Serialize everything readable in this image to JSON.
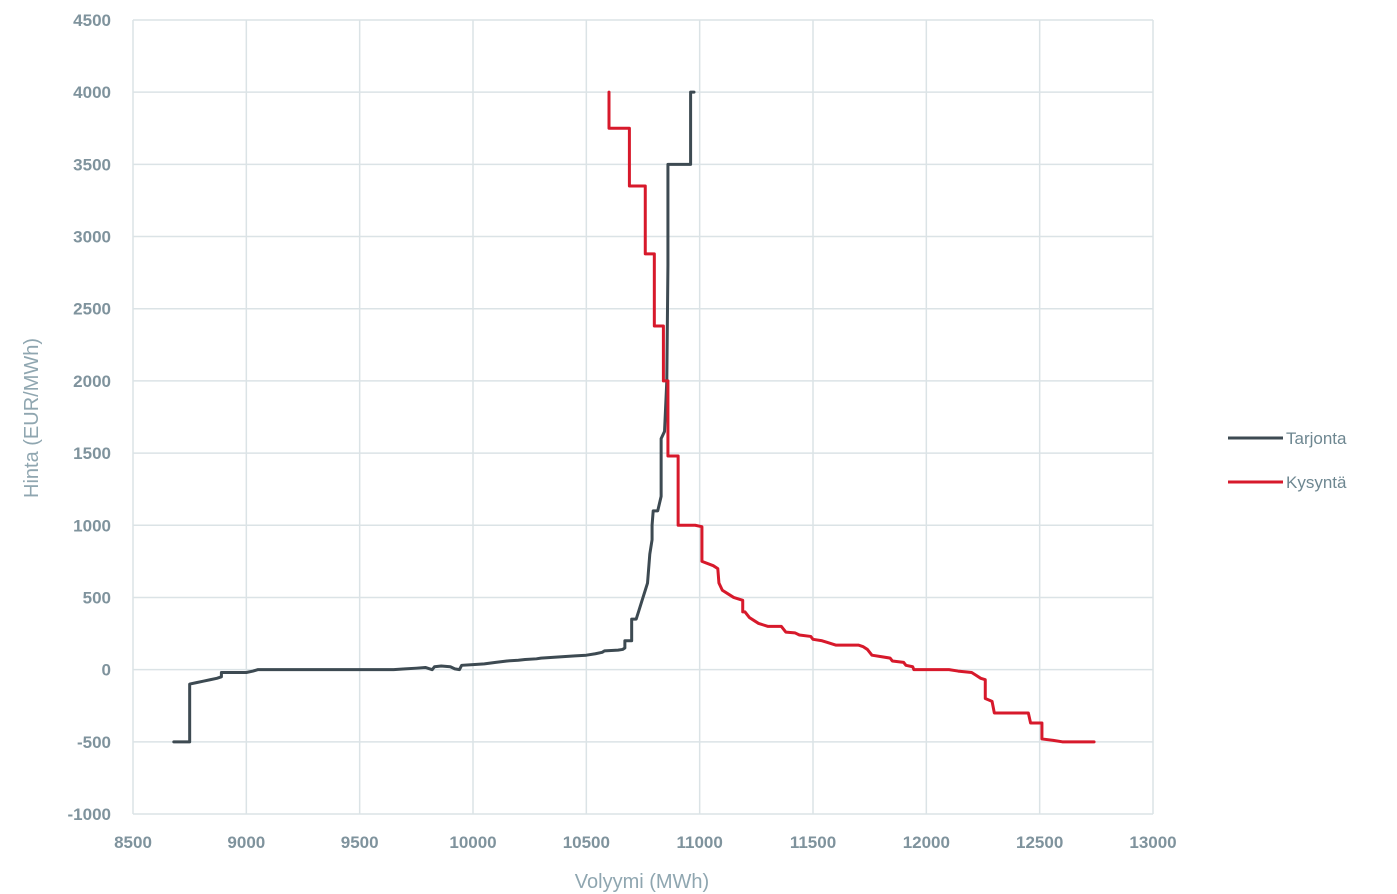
{
  "chart_data": {
    "type": "line",
    "title": "",
    "xlabel": "Volyymi (MWh)",
    "ylabel": "Hinta (EUR/MWh)",
    "xlim": [
      8500,
      13000
    ],
    "ylim": [
      -1000,
      4500
    ],
    "xticks": [
      8500,
      9000,
      9500,
      10000,
      10500,
      11000,
      11500,
      12000,
      12500,
      13000
    ],
    "yticks": [
      -1000,
      -500,
      0,
      500,
      1000,
      1500,
      2000,
      2500,
      3000,
      3500,
      4000,
      4500
    ],
    "grid": true,
    "legend_position": "right",
    "series": [
      {
        "name": "Tarjonta",
        "color": "#3d4a52",
        "points": [
          [
            8680,
            -500
          ],
          [
            8750,
            -500
          ],
          [
            8750,
            -100
          ],
          [
            8780,
            -90
          ],
          [
            8810,
            -80
          ],
          [
            8840,
            -70
          ],
          [
            8870,
            -60
          ],
          [
            8890,
            -50
          ],
          [
            8890,
            -20
          ],
          [
            8950,
            -20
          ],
          [
            9000,
            -20
          ],
          [
            9030,
            -10
          ],
          [
            9050,
            0
          ],
          [
            9250,
            0
          ],
          [
            9500,
            0
          ],
          [
            9650,
            0
          ],
          [
            9700,
            5
          ],
          [
            9750,
            10
          ],
          [
            9790,
            15
          ],
          [
            9810,
            5
          ],
          [
            9820,
            0
          ],
          [
            9830,
            20
          ],
          [
            9860,
            25
          ],
          [
            9900,
            20
          ],
          [
            9920,
            5
          ],
          [
            9940,
            0
          ],
          [
            9950,
            30
          ],
          [
            10000,
            35
          ],
          [
            10050,
            40
          ],
          [
            10100,
            50
          ],
          [
            10150,
            60
          ],
          [
            10200,
            65
          ],
          [
            10230,
            70
          ],
          [
            10280,
            75
          ],
          [
            10300,
            80
          ],
          [
            10350,
            85
          ],
          [
            10400,
            90
          ],
          [
            10450,
            95
          ],
          [
            10500,
            100
          ],
          [
            10540,
            110
          ],
          [
            10570,
            120
          ],
          [
            10580,
            130
          ],
          [
            10640,
            135
          ],
          [
            10660,
            140
          ],
          [
            10670,
            150
          ],
          [
            10670,
            200
          ],
          [
            10700,
            200
          ],
          [
            10700,
            350
          ],
          [
            10720,
            350
          ],
          [
            10730,
            400
          ],
          [
            10740,
            450
          ],
          [
            10750,
            500
          ],
          [
            10760,
            550
          ],
          [
            10770,
            600
          ],
          [
            10780,
            800
          ],
          [
            10790,
            900
          ],
          [
            10790,
            1000
          ],
          [
            10795,
            1100
          ],
          [
            10815,
            1100
          ],
          [
            10830,
            1200
          ],
          [
            10830,
            1600
          ],
          [
            10845,
            1650
          ],
          [
            10855,
            2000
          ],
          [
            10860,
            2800
          ],
          [
            10860,
            3500
          ],
          [
            10960,
            3500
          ],
          [
            10960,
            4000
          ],
          [
            10975,
            4000
          ]
        ]
      },
      {
        "name": "Kysyntä",
        "color": "#d7192b",
        "points": [
          [
            10600,
            4000
          ],
          [
            10600,
            3750
          ],
          [
            10690,
            3750
          ],
          [
            10690,
            3350
          ],
          [
            10760,
            3350
          ],
          [
            10760,
            2880
          ],
          [
            10800,
            2880
          ],
          [
            10800,
            2380
          ],
          [
            10840,
            2380
          ],
          [
            10840,
            2000
          ],
          [
            10860,
            2000
          ],
          [
            10860,
            1480
          ],
          [
            10905,
            1480
          ],
          [
            10905,
            1000
          ],
          [
            10980,
            1000
          ],
          [
            11010,
            990
          ],
          [
            11010,
            750
          ],
          [
            11060,
            720
          ],
          [
            11080,
            700
          ],
          [
            11085,
            600
          ],
          [
            11100,
            550
          ],
          [
            11130,
            520
          ],
          [
            11150,
            500
          ],
          [
            11190,
            480
          ],
          [
            11190,
            400
          ],
          [
            11200,
            400
          ],
          [
            11220,
            360
          ],
          [
            11240,
            340
          ],
          [
            11260,
            320
          ],
          [
            11280,
            310
          ],
          [
            11300,
            300
          ],
          [
            11360,
            300
          ],
          [
            11380,
            260
          ],
          [
            11420,
            255
          ],
          [
            11440,
            240
          ],
          [
            11490,
            230
          ],
          [
            11500,
            210
          ],
          [
            11540,
            200
          ],
          [
            11560,
            190
          ],
          [
            11600,
            170
          ],
          [
            11700,
            170
          ],
          [
            11720,
            160
          ],
          [
            11740,
            140
          ],
          [
            11760,
            100
          ],
          [
            11800,
            90
          ],
          [
            11840,
            80
          ],
          [
            11850,
            60
          ],
          [
            11900,
            50
          ],
          [
            11910,
            30
          ],
          [
            11940,
            20
          ],
          [
            11945,
            0
          ],
          [
            12000,
            0
          ],
          [
            12100,
            0
          ],
          [
            12140,
            -10
          ],
          [
            12200,
            -20
          ],
          [
            12220,
            -40
          ],
          [
            12240,
            -60
          ],
          [
            12260,
            -70
          ],
          [
            12260,
            -200
          ],
          [
            12290,
            -220
          ],
          [
            12300,
            -300
          ],
          [
            12450,
            -300
          ],
          [
            12460,
            -370
          ],
          [
            12510,
            -370
          ],
          [
            12510,
            -480
          ],
          [
            12560,
            -490
          ],
          [
            12600,
            -500
          ],
          [
            12740,
            -500
          ]
        ]
      }
    ]
  }
}
